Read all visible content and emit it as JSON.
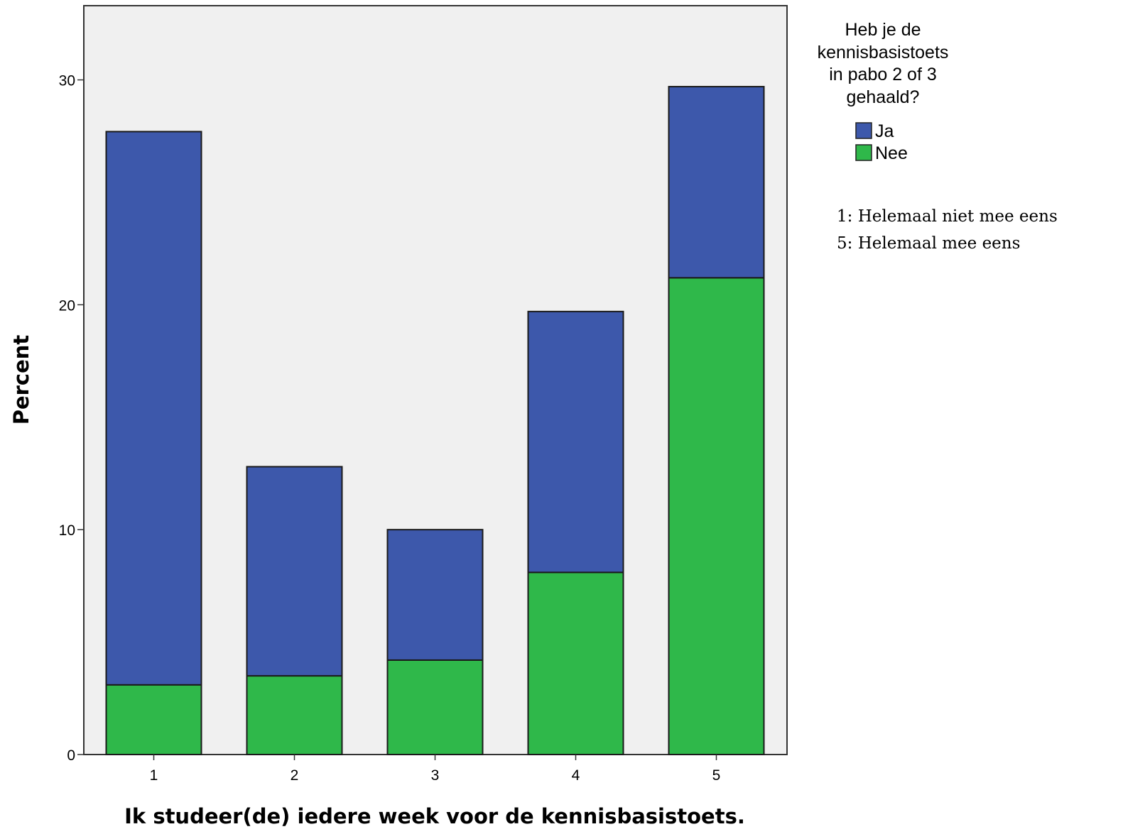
{
  "chart_data": {
    "type": "bar",
    "stacked": true,
    "categories": [
      "1",
      "2",
      "3",
      "4",
      "5"
    ],
    "series": [
      {
        "name": "Ja",
        "color": "#3d58ab",
        "values": [
          24.6,
          9.3,
          5.8,
          11.6,
          8.5
        ]
      },
      {
        "name": "Nee",
        "color": "#2fb84a",
        "values": [
          3.1,
          3.5,
          4.2,
          8.1,
          21.2
        ]
      }
    ],
    "xlabel": "Ik studeer(de) iedere week voor de kennisbasistoets.",
    "ylabel": "Percent",
    "ylim": [
      0,
      33.3
    ],
    "yticks": [
      0,
      10,
      20,
      30
    ],
    "legend": {
      "title_lines": [
        "Heb je de",
        "kennisbasistoets",
        "in pabo 2 of 3",
        "gehaald?"
      ],
      "placement": "top-right, outside plot"
    },
    "annotations": [
      "1: Helemaal niet mee eens",
      "5: Helemaal mee eens"
    ],
    "plot_background": "#f0f0f0",
    "grid": false
  }
}
